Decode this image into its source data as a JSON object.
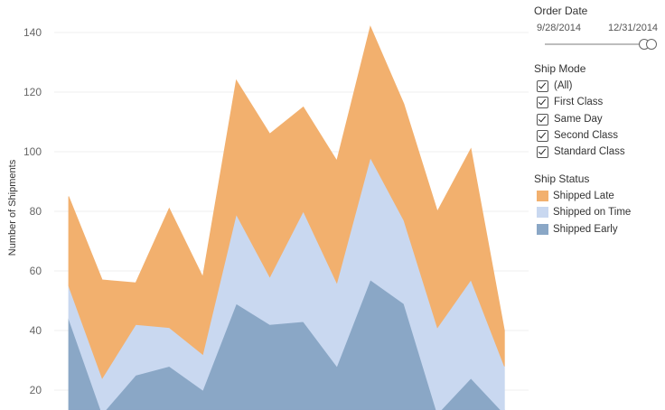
{
  "chart_data": {
    "type": "area",
    "stacked": true,
    "ylabel": "Number of Shipments",
    "xlabel": "",
    "ylim": [
      10,
      146
    ],
    "yticks": [
      20,
      40,
      60,
      80,
      100,
      120,
      140
    ],
    "grid": true,
    "x": [
      1,
      2,
      3,
      4,
      5,
      6,
      7,
      8,
      9,
      10,
      11,
      12,
      13,
      14
    ],
    "series": [
      {
        "name": "Shipped Early",
        "color": "#8aa7c6",
        "values": [
          44,
          12,
          25,
          28,
          20,
          49,
          42,
          43,
          28,
          57,
          49,
          12,
          24,
          12
        ]
      },
      {
        "name": "Shipped on Time",
        "color": "#c9d8f0",
        "values": [
          11,
          12,
          17,
          13,
          12,
          30,
          16,
          37,
          28,
          41,
          28,
          29,
          33,
          16
        ]
      },
      {
        "name": "Shipped Late",
        "color": "#f2b06e",
        "values": [
          30,
          33,
          14,
          40,
          26,
          45,
          48,
          35,
          41,
          44,
          39,
          39,
          44,
          12
        ]
      }
    ]
  },
  "filters": {
    "order_date": {
      "title": "Order Date",
      "start": "9/28/2014",
      "end": "12/31/2014"
    },
    "ship_mode": {
      "title": "Ship Mode",
      "options": [
        "(All)",
        "First Class",
        "Same Day",
        "Second Class",
        "Standard Class"
      ]
    }
  },
  "legend": {
    "title": "Ship Status",
    "items": [
      {
        "label": "Shipped Late",
        "color": "#f2b06e"
      },
      {
        "label": "Shipped on Time",
        "color": "#c9d8f0"
      },
      {
        "label": "Shipped Early",
        "color": "#8aa7c6"
      }
    ]
  }
}
